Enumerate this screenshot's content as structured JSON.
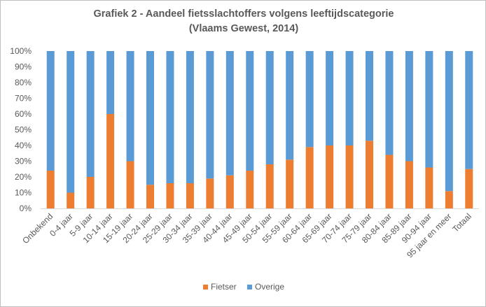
{
  "chart_data": {
    "type": "bar",
    "stacked": true,
    "percent": true,
    "title": "Grafiek 2 - Aandeel fietsslachtoffers volgens leeftijdscategorie",
    "subtitle": "(Vlaams Gewest, 2014)",
    "categories": [
      "Onbekend",
      "0-4 jaar",
      "5-9 jaar",
      "10-14 jaar",
      "15-19 jaar",
      "20-24 jaar",
      "25-29 jaar",
      "30-34 jaar",
      "35-39 jaar",
      "40-44 jaar",
      "45-49 jaar",
      "50-54 jaar",
      "55-59 jaar",
      "60-64 jaar",
      "65-69 jaar",
      "70-74 jaar",
      "75-79 jaar",
      "80-84 jaar",
      "85-89 jaar",
      "90-94 jaar",
      "95 jaar en meer",
      "Totaal"
    ],
    "series": [
      {
        "name": "Fietser",
        "color": "#ED7D31",
        "values": [
          24,
          10,
          20,
          60,
          30,
          15,
          16,
          16,
          19,
          21,
          24,
          28,
          31,
          39,
          40,
          40,
          43,
          34,
          30,
          26,
          11,
          25
        ]
      },
      {
        "name": "Overige",
        "color": "#5B9BD5",
        "values": [
          76,
          90,
          80,
          40,
          70,
          85,
          84,
          84,
          81,
          79,
          76,
          72,
          69,
          61,
          60,
          60,
          57,
          66,
          70,
          74,
          89,
          75
        ]
      }
    ],
    "yticks": [
      "0%",
      "10%",
      "20%",
      "30%",
      "40%",
      "50%",
      "60%",
      "70%",
      "80%",
      "90%",
      "100%"
    ],
    "ylim": [
      0,
      100
    ],
    "grid": false,
    "legend_position": "bottom"
  }
}
